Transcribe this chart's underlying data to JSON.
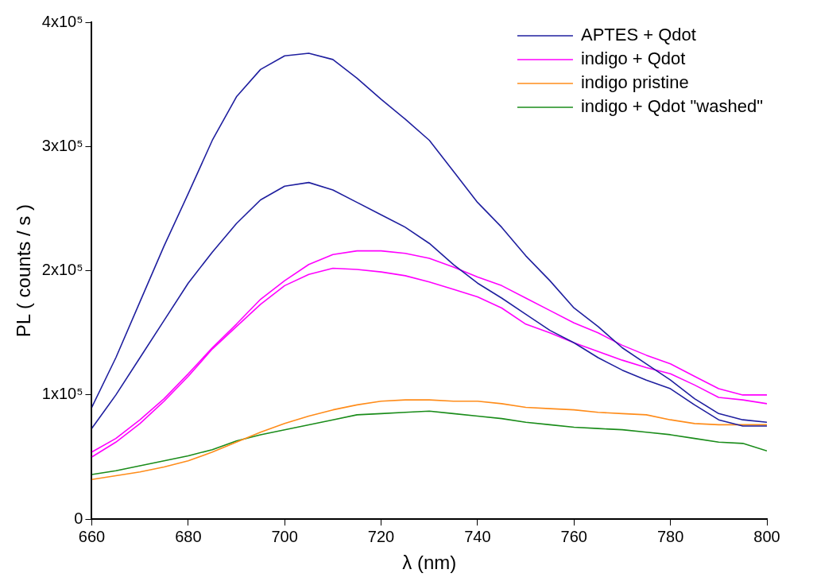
{
  "chart_data": {
    "type": "line",
    "xlabel": "λ (nm)",
    "ylabel": "PL ( counts / s )",
    "x": [
      660,
      665,
      670,
      675,
      680,
      685,
      690,
      695,
      700,
      705,
      710,
      715,
      720,
      725,
      730,
      735,
      740,
      745,
      750,
      755,
      760,
      765,
      770,
      775,
      780,
      785,
      790,
      795,
      800
    ],
    "series": [
      {
        "name": "APTES + Qdot",
        "color": "#1f1f9f",
        "values": [
          90000,
          130000,
          175000,
          220000,
          262000,
          305000,
          340000,
          362000,
          373000,
          375000,
          370000,
          355000,
          338000,
          322000,
          305000,
          280000,
          255000,
          235000,
          212000,
          192000,
          170000,
          155000,
          138000,
          125000,
          112000,
          97000,
          85000,
          80000,
          78000
        ]
      },
      {
        "color": "#1f1f9f",
        "values": [
          73000,
          100000,
          130000,
          160000,
          190000,
          215000,
          238000,
          257000,
          268000,
          271000,
          265000,
          255000,
          245000,
          235000,
          222000,
          205000,
          190000,
          178000,
          165000,
          152000,
          142000,
          130000,
          120000,
          112000,
          105000,
          92000,
          80000,
          75000,
          75000
        ]
      },
      {
        "name": "indigo + Qdot",
        "color": "#ff00ff",
        "values": [
          54000,
          65000,
          80000,
          97000,
          117000,
          138000,
          157000,
          177000,
          192000,
          205000,
          213000,
          216000,
          216000,
          214000,
          210000,
          203000,
          195000,
          188000,
          178000,
          168000,
          158000,
          150000,
          140000,
          132000,
          125000,
          115000,
          105000,
          100000,
          100000
        ]
      },
      {
        "color": "#ff00ff",
        "values": [
          50000,
          62000,
          77000,
          95000,
          115000,
          137000,
          155000,
          173000,
          188000,
          197000,
          202000,
          201000,
          199000,
          196000,
          191000,
          185000,
          179000,
          170000,
          157000,
          150000,
          142000,
          135000,
          128000,
          122000,
          117000,
          108000,
          98000,
          96000,
          93000
        ]
      },
      {
        "name": "indigo pristine",
        "color": "#ff8c1a",
        "values": [
          32000,
          35000,
          38000,
          42000,
          47000,
          54000,
          62000,
          70000,
          77000,
          83000,
          88000,
          92000,
          95000,
          96000,
          96000,
          95000,
          95000,
          93000,
          90000,
          89000,
          88000,
          86000,
          85000,
          84000,
          80000,
          77000,
          76000,
          76000,
          76000
        ]
      },
      {
        "name": "indigo + Qdot \"washed\"",
        "color": "#1a8c1a",
        "values": [
          36000,
          39000,
          43000,
          47000,
          51000,
          56000,
          63000,
          68000,
          72000,
          76000,
          80000,
          84000,
          85000,
          86000,
          87000,
          85000,
          83000,
          81000,
          78000,
          76000,
          74000,
          73000,
          72000,
          70000,
          68000,
          65000,
          62000,
          61000,
          55000
        ]
      }
    ],
    "xlim": [
      660,
      800
    ],
    "xticks": [
      660,
      680,
      700,
      720,
      740,
      760,
      780,
      800
    ],
    "ylim": [
      0,
      400000
    ],
    "yticks": [
      0,
      {
        "value": 100000,
        "label": "1x10⁵"
      },
      {
        "value": 200000,
        "label": "2x10⁵"
      },
      {
        "value": 300000,
        "label": "3x10⁵"
      },
      {
        "value": 400000,
        "label": "4x10⁵"
      }
    ],
    "grid": false,
    "legend": "top right",
    "marker": "none",
    "line_style": "solid"
  }
}
